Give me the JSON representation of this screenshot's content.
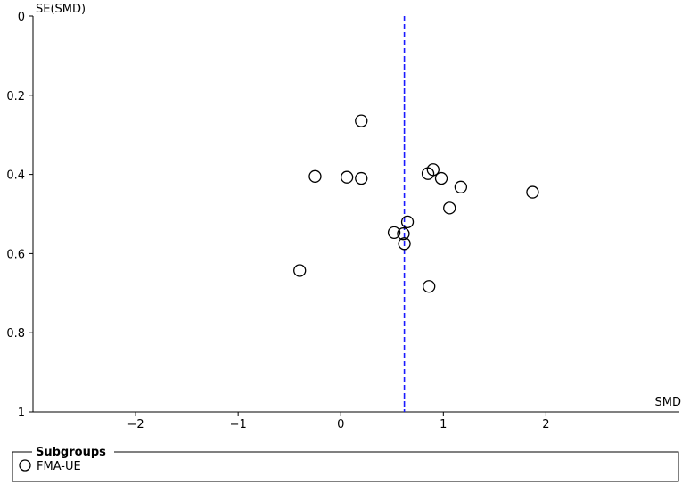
{
  "chart_data": {
    "type": "scatter",
    "subtype": "funnel-plot",
    "xlabel": "SMD",
    "ylabel": "SE(SMD)",
    "xlim": [
      -3,
      3.3
    ],
    "ylim": [
      0,
      1
    ],
    "y_inverted": true,
    "x_ticks": [
      -2,
      -1,
      0,
      1,
      2
    ],
    "x_tick_labels": [
      "-2",
      "-1",
      "0",
      "1",
      "2"
    ],
    "y_ticks": [
      0,
      0.2,
      0.4,
      0.6,
      0.8,
      1
    ],
    "y_tick_labels": [
      "0",
      "0.2",
      "0.4",
      "0.6",
      "0.8",
      "1"
    ],
    "reference_line": {
      "x": 0.62,
      "style": "dashed",
      "color": "#1a1aff"
    },
    "marker": "open-circle",
    "series": [
      {
        "name": "FMA-UE",
        "points": [
          {
            "x": 0.2,
            "y": 0.265
          },
          {
            "x": -0.25,
            "y": 0.405
          },
          {
            "x": 0.06,
            "y": 0.407
          },
          {
            "x": 0.2,
            "y": 0.41
          },
          {
            "x": 0.9,
            "y": 0.388
          },
          {
            "x": 0.85,
            "y": 0.398
          },
          {
            "x": 0.98,
            "y": 0.41
          },
          {
            "x": 1.17,
            "y": 0.432
          },
          {
            "x": 1.87,
            "y": 0.445
          },
          {
            "x": 1.06,
            "y": 0.485
          },
          {
            "x": 0.65,
            "y": 0.52
          },
          {
            "x": 0.52,
            "y": 0.547
          },
          {
            "x": 0.61,
            "y": 0.55
          },
          {
            "x": 0.62,
            "y": 0.575
          },
          {
            "x": -0.4,
            "y": 0.643
          },
          {
            "x": 0.86,
            "y": 0.683
          }
        ]
      }
    ],
    "legend": {
      "title": "Subgroups",
      "entries": [
        "FMA-UE"
      ],
      "placement": "bottom"
    }
  }
}
